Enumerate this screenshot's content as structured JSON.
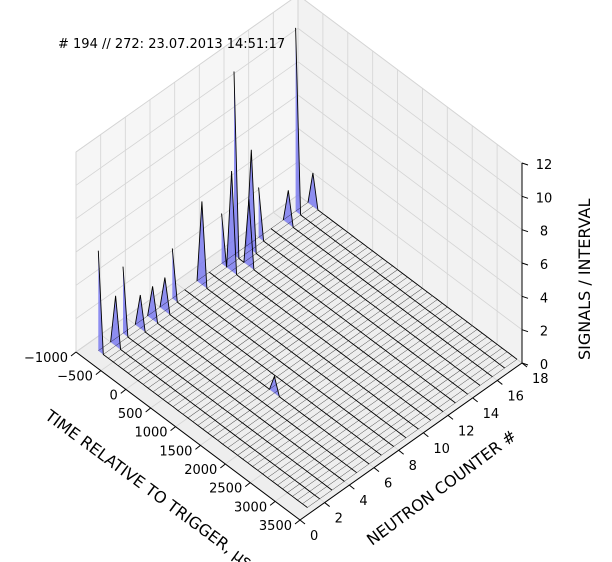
{
  "chart_data": {
    "type": "surface-3d",
    "title": "# 194 // 272: 23.07.2013 14:51:17",
    "xlabel": "TIME RELATIVE TO TRIGGER, µs",
    "ylabel": "NEUTRON COUNTER #",
    "zlabel": "SIGNALS / INTERVAL",
    "xlim": [
      -1000,
      3500
    ],
    "ylim": [
      0,
      18
    ],
    "zlim": [
      0,
      12
    ],
    "x_ticks": [
      -1000,
      -500,
      0,
      500,
      1000,
      1500,
      2000,
      2500,
      3000,
      3500
    ],
    "y_ticks": [
      0,
      2,
      4,
      6,
      8,
      10,
      12,
      14,
      16,
      18
    ],
    "z_ticks": [
      0,
      2,
      4,
      6,
      8,
      10,
      12
    ],
    "x_tick_labels": [
      "−1000",
      "−500",
      "0",
      "500",
      "1000",
      "1500",
      "2000",
      "2500",
      "3000",
      "3500"
    ],
    "y_tick_labels": [
      "0",
      "2",
      "4",
      "6",
      "8",
      "10",
      "12",
      "14",
      "16",
      "18"
    ],
    "z_tick_labels": [
      "0",
      "2",
      "4",
      "6",
      "8",
      "10",
      "12"
    ],
    "x_range": [
      -800,
      3400
    ],
    "x_step": 100,
    "y_range": [
      1,
      18
    ],
    "surface_color": "#7b7bf0",
    "edge_color": "#000000",
    "peaks": [
      {
        "x": -800,
        "y": 1,
        "z": 6
      },
      {
        "x": -700,
        "y": 2,
        "z": 3
      },
      {
        "x": -800,
        "y": 3,
        "z": 4
      },
      {
        "x": -700,
        "y": 4,
        "z": 2
      },
      {
        "x": -700,
        "y": 5,
        "z": 2
      },
      {
        "x": -700,
        "y": 6,
        "z": 2
      },
      {
        "x": -800,
        "y": 7,
        "z": 3
      },
      {
        "x": -700,
        "y": 9,
        "z": 5
      },
      {
        "x": -800,
        "y": 11,
        "z": 3
      },
      {
        "x": -600,
        "y": 11,
        "z": 6
      },
      {
        "x": -800,
        "y": 12,
        "z": 11
      },
      {
        "x": -500,
        "y": 12,
        "z": 4
      },
      {
        "x": -700,
        "y": 13,
        "z": 6
      },
      {
        "x": -800,
        "y": 14,
        "z": 3
      },
      {
        "x": -700,
        "y": 16,
        "z": 2
      },
      {
        "x": -800,
        "y": 17,
        "z": 11
      },
      {
        "x": -700,
        "y": 18,
        "z": 2
      },
      {
        "x": 1500,
        "y": 6,
        "z": 1
      }
    ]
  }
}
